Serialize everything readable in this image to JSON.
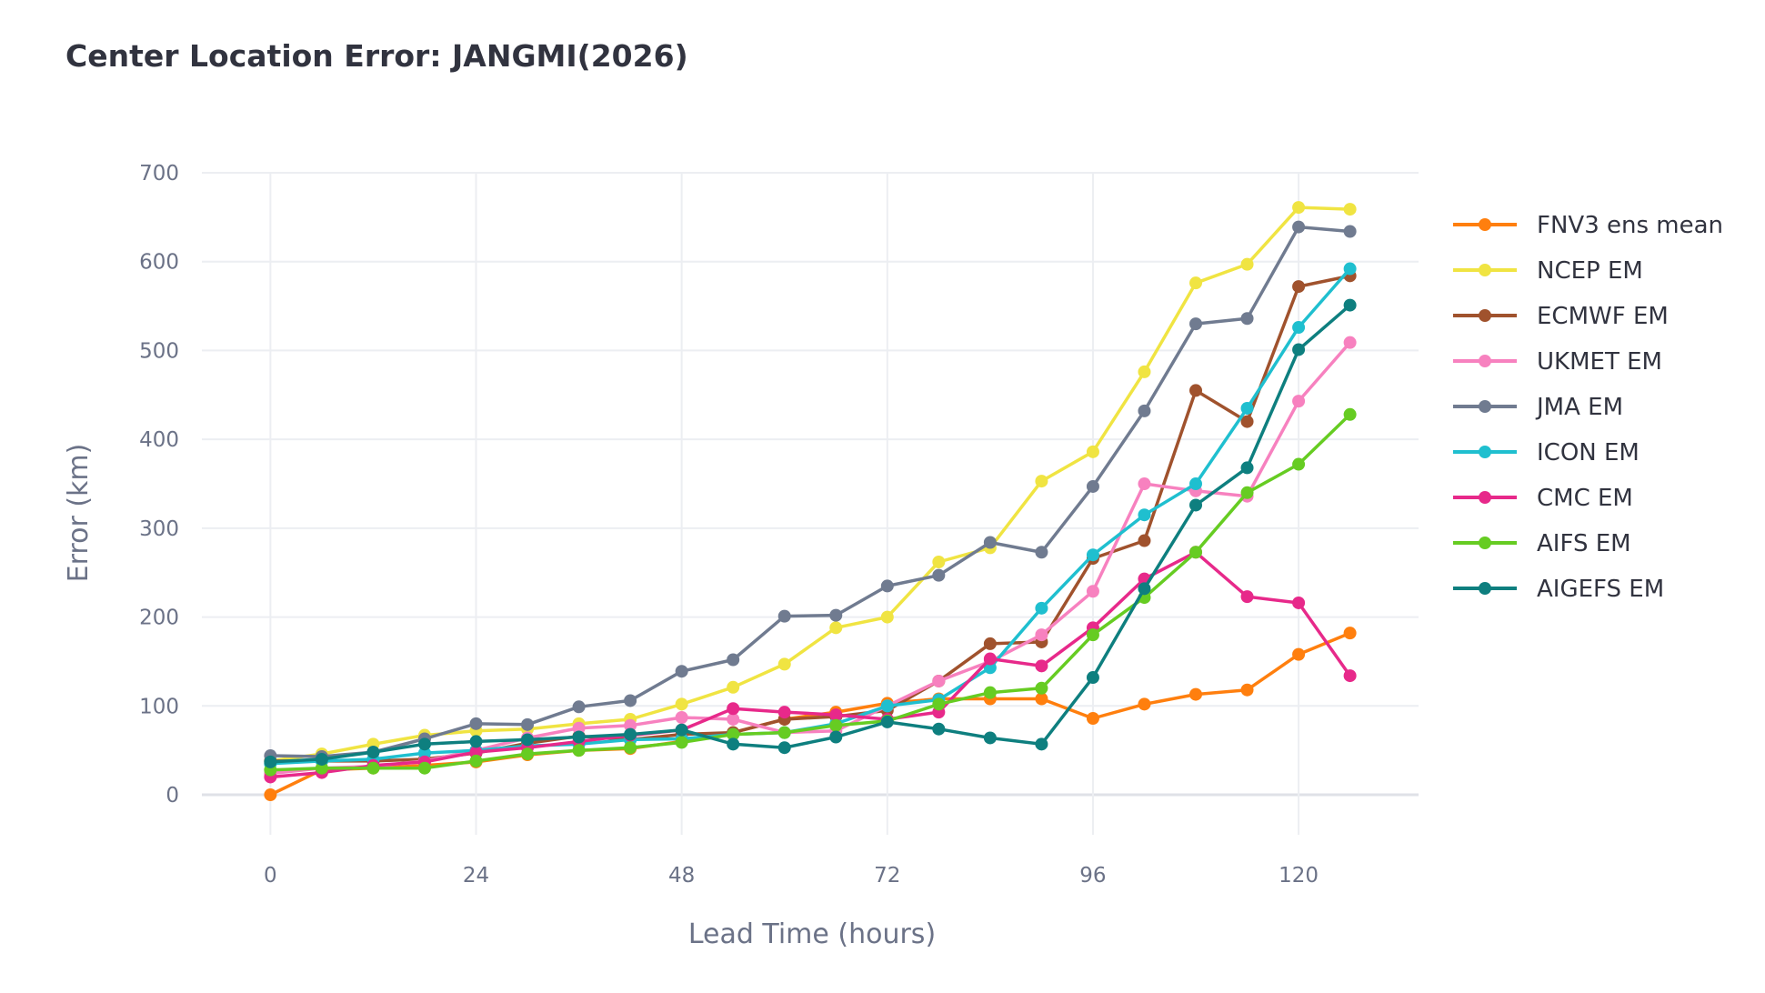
{
  "chart_data": {
    "type": "line",
    "title": "Center Location Error: JANGMI(2026)",
    "xlabel": "Lead Time (hours)",
    "ylabel": "Error (km)",
    "xlim": [
      -8,
      134
    ],
    "ylim": [
      -45,
      700
    ],
    "x_ticks": [
      0,
      24,
      48,
      72,
      96,
      120
    ],
    "y_ticks": [
      0,
      100,
      200,
      300,
      400,
      500,
      600,
      700
    ],
    "grid": true,
    "legend_position": "right",
    "x": [
      0,
      6,
      12,
      18,
      24,
      30,
      36,
      42,
      48,
      54,
      60,
      66,
      72,
      78,
      84,
      90,
      96,
      102,
      108,
      114,
      120,
      126
    ],
    "series": [
      {
        "name": "FNV3 ens mean",
        "color": "#ff7f0e",
        "values": [
          0,
          28,
          30,
          33,
          37,
          45,
          50,
          52,
          60,
          70,
          85,
          93,
          103,
          108,
          108,
          108,
          86,
          102,
          113,
          118,
          158,
          182
        ]
      },
      {
        "name": "NCEP EM",
        "color": "#f0e442",
        "values": [
          38,
          46,
          57,
          67,
          72,
          74,
          80,
          85,
          102,
          121,
          147,
          188,
          200,
          262,
          278,
          353,
          386,
          476,
          576,
          597,
          661,
          659
        ]
      },
      {
        "name": "ECMWF EM",
        "color": "#a0522d",
        "values": [
          38,
          38,
          38,
          40,
          47,
          58,
          66,
          62,
          68,
          70,
          85,
          88,
          95,
          128,
          170,
          172,
          266,
          286,
          455,
          420,
          572,
          584
        ]
      },
      {
        "name": "UKMET EM",
        "color": "#f781bf",
        "values": [
          24,
          30,
          32,
          38,
          50,
          64,
          75,
          78,
          87,
          85,
          70,
          72,
          100,
          128,
          150,
          180,
          229,
          350,
          342,
          336,
          443,
          509
        ]
      },
      {
        "name": "JMA EM",
        "color": "#707b90",
        "values": [
          44,
          43,
          48,
          63,
          80,
          79,
          99,
          106,
          139,
          152,
          201,
          202,
          235,
          247,
          284,
          273,
          347,
          432,
          530,
          536,
          639,
          634
        ]
      },
      {
        "name": "ICON EM",
        "color": "#1fbfcf",
        "values": [
          35,
          38,
          40,
          47,
          50,
          55,
          57,
          62,
          63,
          68,
          70,
          80,
          100,
          107,
          143,
          210,
          270,
          315,
          350,
          435,
          526,
          592
        ]
      },
      {
        "name": "CMC EM",
        "color": "#e7298a",
        "values": [
          20,
          25,
          33,
          37,
          48,
          53,
          60,
          67,
          73,
          97,
          93,
          90,
          85,
          93,
          153,
          145,
          188,
          243,
          273,
          223,
          216,
          134
        ]
      },
      {
        "name": "AIFS EM",
        "color": "#66cc22",
        "values": [
          28,
          30,
          30,
          30,
          38,
          46,
          50,
          53,
          59,
          68,
          70,
          78,
          83,
          102,
          115,
          120,
          180,
          222,
          273,
          340,
          372,
          428
        ]
      },
      {
        "name": "AIGEFS EM",
        "color": "#0e7f7f",
        "values": [
          37,
          40,
          48,
          57,
          60,
          62,
          65,
          68,
          73,
          57,
          53,
          65,
          82,
          74,
          64,
          57,
          132,
          232,
          326,
          368,
          501,
          551
        ]
      }
    ]
  }
}
